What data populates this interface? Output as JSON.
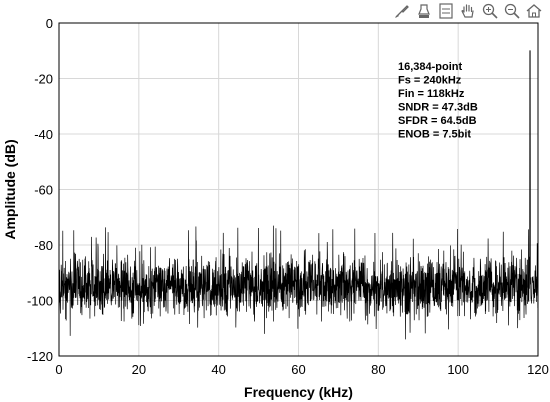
{
  "toolbar": {
    "icons": [
      "brush-icon",
      "edit-icon",
      "legend-icon",
      "pan-icon",
      "zoom-in-icon",
      "zoom-out-icon",
      "home-icon"
    ]
  },
  "chart_data": {
    "type": "line",
    "title": "",
    "xlabel": "Frequency (kHz)",
    "ylabel": "Amplitude (dB)",
    "xlim": [
      0,
      120
    ],
    "ylim": [
      -120,
      0
    ],
    "xticks": [
      0,
      20,
      40,
      60,
      80,
      100,
      120
    ],
    "yticks": [
      0,
      -20,
      -40,
      -60,
      -80,
      -100,
      -120
    ],
    "grid": true,
    "line_color": "#000000",
    "noise_floor_db": -95,
    "noise_peak_db": -76,
    "signal_peak": {
      "x": 118,
      "y": -10
    },
    "annotation": [
      "16,384-point",
      "Fs = 240kHz",
      "Fin = 118kHz",
      "SNDR = 47.3dB",
      "SFDR = 64.5dB",
      "ENOB = 7.5bit"
    ]
  }
}
